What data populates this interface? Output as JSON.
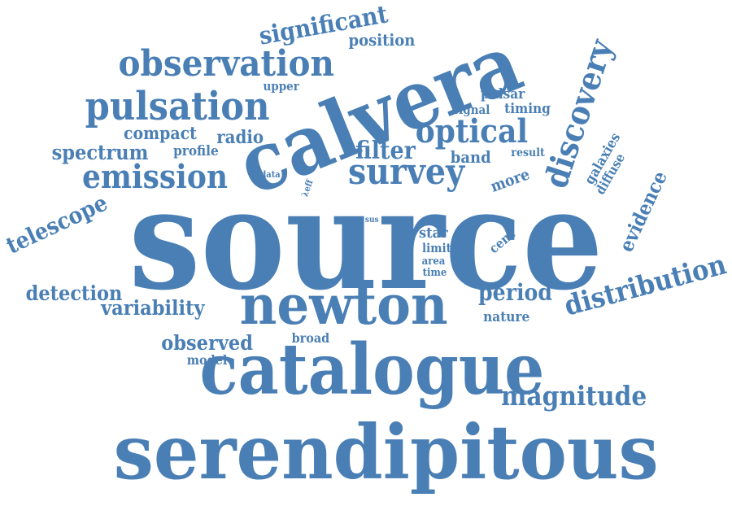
{
  "color": "#4a7fb5",
  "words": [
    {
      "key": "source",
      "text": "source"
    },
    {
      "key": "serendipitous",
      "text": "serendipitous"
    },
    {
      "key": "catalogue",
      "text": "catalogue"
    },
    {
      "key": "calvera",
      "text": "calvera"
    },
    {
      "key": "newton",
      "text": "newton"
    },
    {
      "key": "pulsation",
      "text": "pulsation"
    },
    {
      "key": "observation",
      "text": "observation"
    },
    {
      "key": "discovery",
      "text": "discovery"
    },
    {
      "key": "survey",
      "text": "survey"
    },
    {
      "key": "emission",
      "text": "emission"
    },
    {
      "key": "optical",
      "text": "optical"
    },
    {
      "key": "distribution",
      "text": "distribution"
    },
    {
      "key": "magnitude",
      "text": "magnitude"
    },
    {
      "key": "significant",
      "text": "significant"
    },
    {
      "key": "filter",
      "text": "filter"
    },
    {
      "key": "telescope",
      "text": "telescope"
    },
    {
      "key": "spectrum",
      "text": "spectrum"
    },
    {
      "key": "detection",
      "text": "detection"
    },
    {
      "key": "variability",
      "text": "variability"
    },
    {
      "key": "observed",
      "text": "observed"
    },
    {
      "key": "period",
      "text": "period"
    },
    {
      "key": "evidence",
      "text": "evidence"
    },
    {
      "key": "position",
      "text": "position"
    },
    {
      "key": "compact",
      "text": "compact"
    },
    {
      "key": "radio",
      "text": "radio"
    },
    {
      "key": "galaxies",
      "text": "galaxies"
    },
    {
      "key": "band",
      "text": "band"
    },
    {
      "key": "more",
      "text": "more"
    },
    {
      "key": "pulsar",
      "text": "pulsar"
    },
    {
      "key": "signal",
      "text": "signal"
    },
    {
      "key": "timing",
      "text": "timing"
    },
    {
      "key": "profile",
      "text": "profile"
    },
    {
      "key": "upper",
      "text": "upper"
    },
    {
      "key": "result",
      "text": "result"
    },
    {
      "key": "diffuse",
      "text": "diffuse"
    },
    {
      "key": "star",
      "text": "star"
    },
    {
      "key": "limit",
      "text": "limit"
    },
    {
      "key": "area",
      "text": "area"
    },
    {
      "key": "time",
      "text": "time"
    },
    {
      "key": "cent",
      "text": "cent"
    },
    {
      "key": "nature",
      "text": "nature"
    },
    {
      "key": "broad",
      "text": "broad"
    },
    {
      "key": "model",
      "text": "model"
    },
    {
      "key": "data",
      "text": "data"
    },
    {
      "key": "eff",
      "text": "λeff"
    },
    {
      "key": "sus",
      "text": "sus"
    }
  ]
}
